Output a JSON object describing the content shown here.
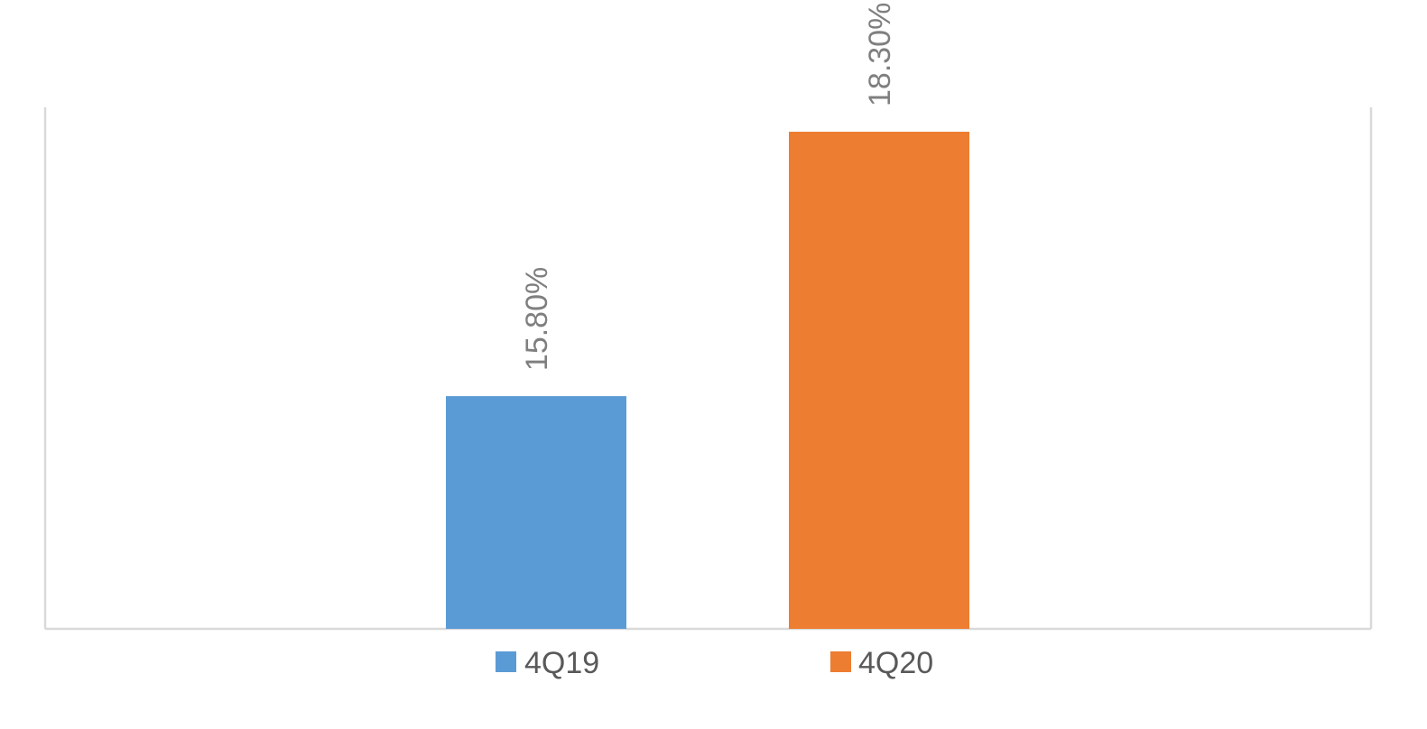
{
  "chart_data": {
    "type": "bar",
    "title": "",
    "xlabel": "",
    "ylabel": "",
    "ylim": [
      13.6,
      18.9
    ],
    "grid": false,
    "legend_position": "bottom",
    "series": [
      {
        "name": "4Q19",
        "value": 15.8,
        "label": "15.80%",
        "color": "#5B9BD5"
      },
      {
        "name": "4Q20",
        "value": 18.3,
        "label": "18.30%",
        "color": "#ED7D31"
      }
    ]
  }
}
